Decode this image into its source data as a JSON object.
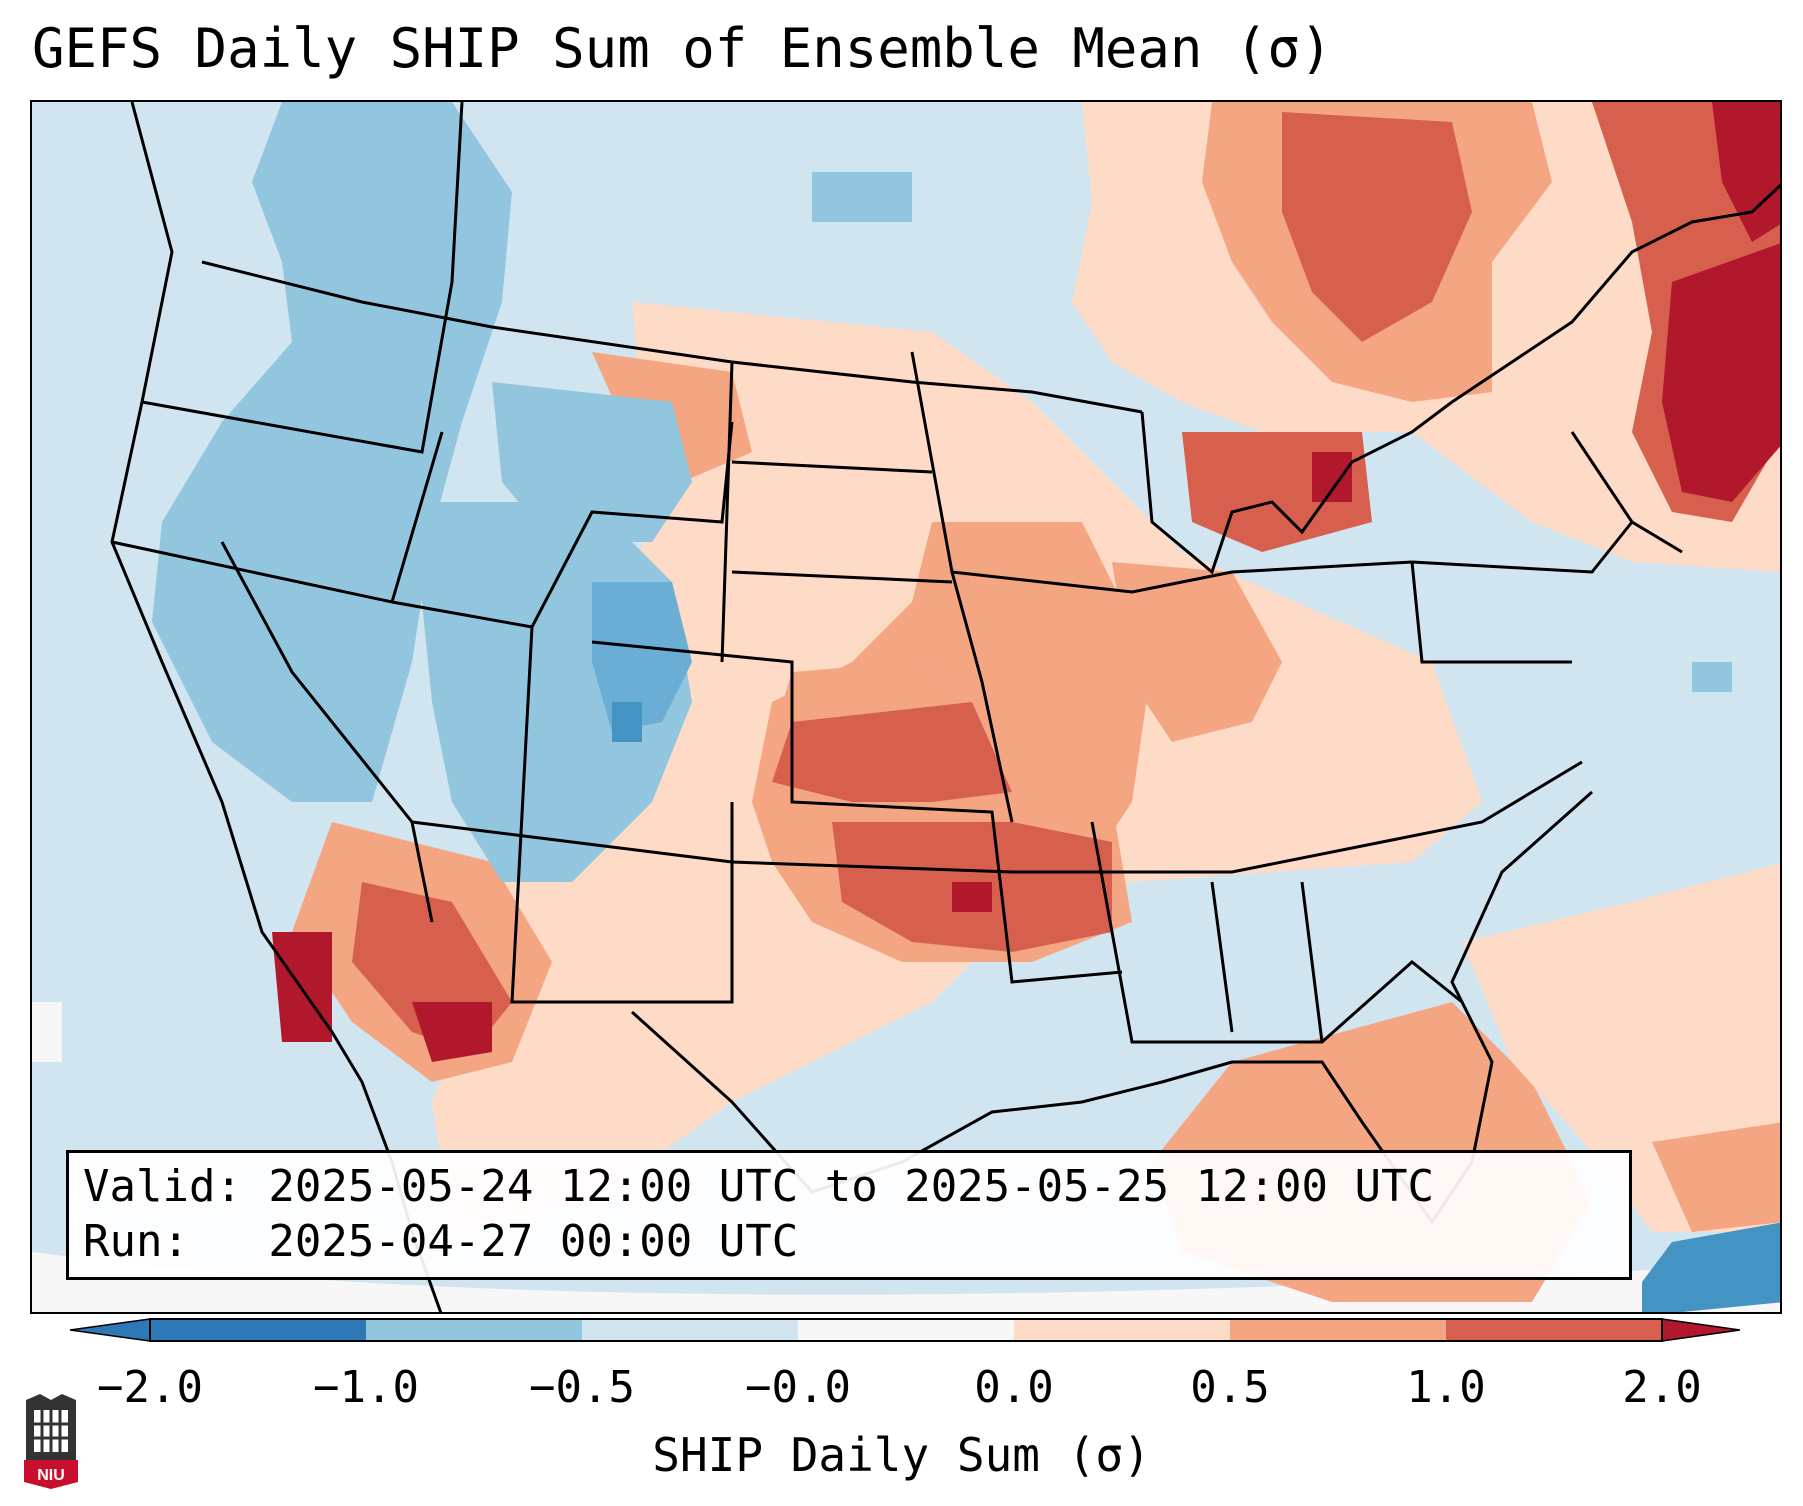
{
  "title": "GEFS Daily SHIP Sum of Ensemble Mean (σ)",
  "info": {
    "valid_line": "Valid: 2025-05-24 12:00 UTC to 2025-05-25 12:00 UTC",
    "run_line": "Run:   2025-04-27 00:00 UTC"
  },
  "colorbar": {
    "label": "SHIP Daily Sum (σ)",
    "ticks": [
      "−2.0",
      "−1.0",
      "−0.5",
      "−0.0",
      "0.0",
      "0.5",
      "1.0",
      "2.0"
    ],
    "colors": [
      "#2f78b8",
      "#92c5de",
      "#d1e5f0",
      "#f7f7f7",
      "#fddbc7",
      "#f4a582",
      "#d6604d",
      "#b2182b"
    ],
    "extend": "both"
  },
  "logo": {
    "text": "NIU"
  },
  "map": {
    "region": "Contiguous United States",
    "highlights": [
      {
        "area": "Oklahoma / Kansas",
        "category": "1.0 to 2.0"
      },
      {
        "area": "Northeast / New England",
        "category": "1.0 to 2.0"
      },
      {
        "area": "Southern Arizona",
        "category": "1.0 to 2.0"
      },
      {
        "area": "Utah / Colorado",
        "category": "-1.0 to -0.5"
      }
    ]
  }
}
